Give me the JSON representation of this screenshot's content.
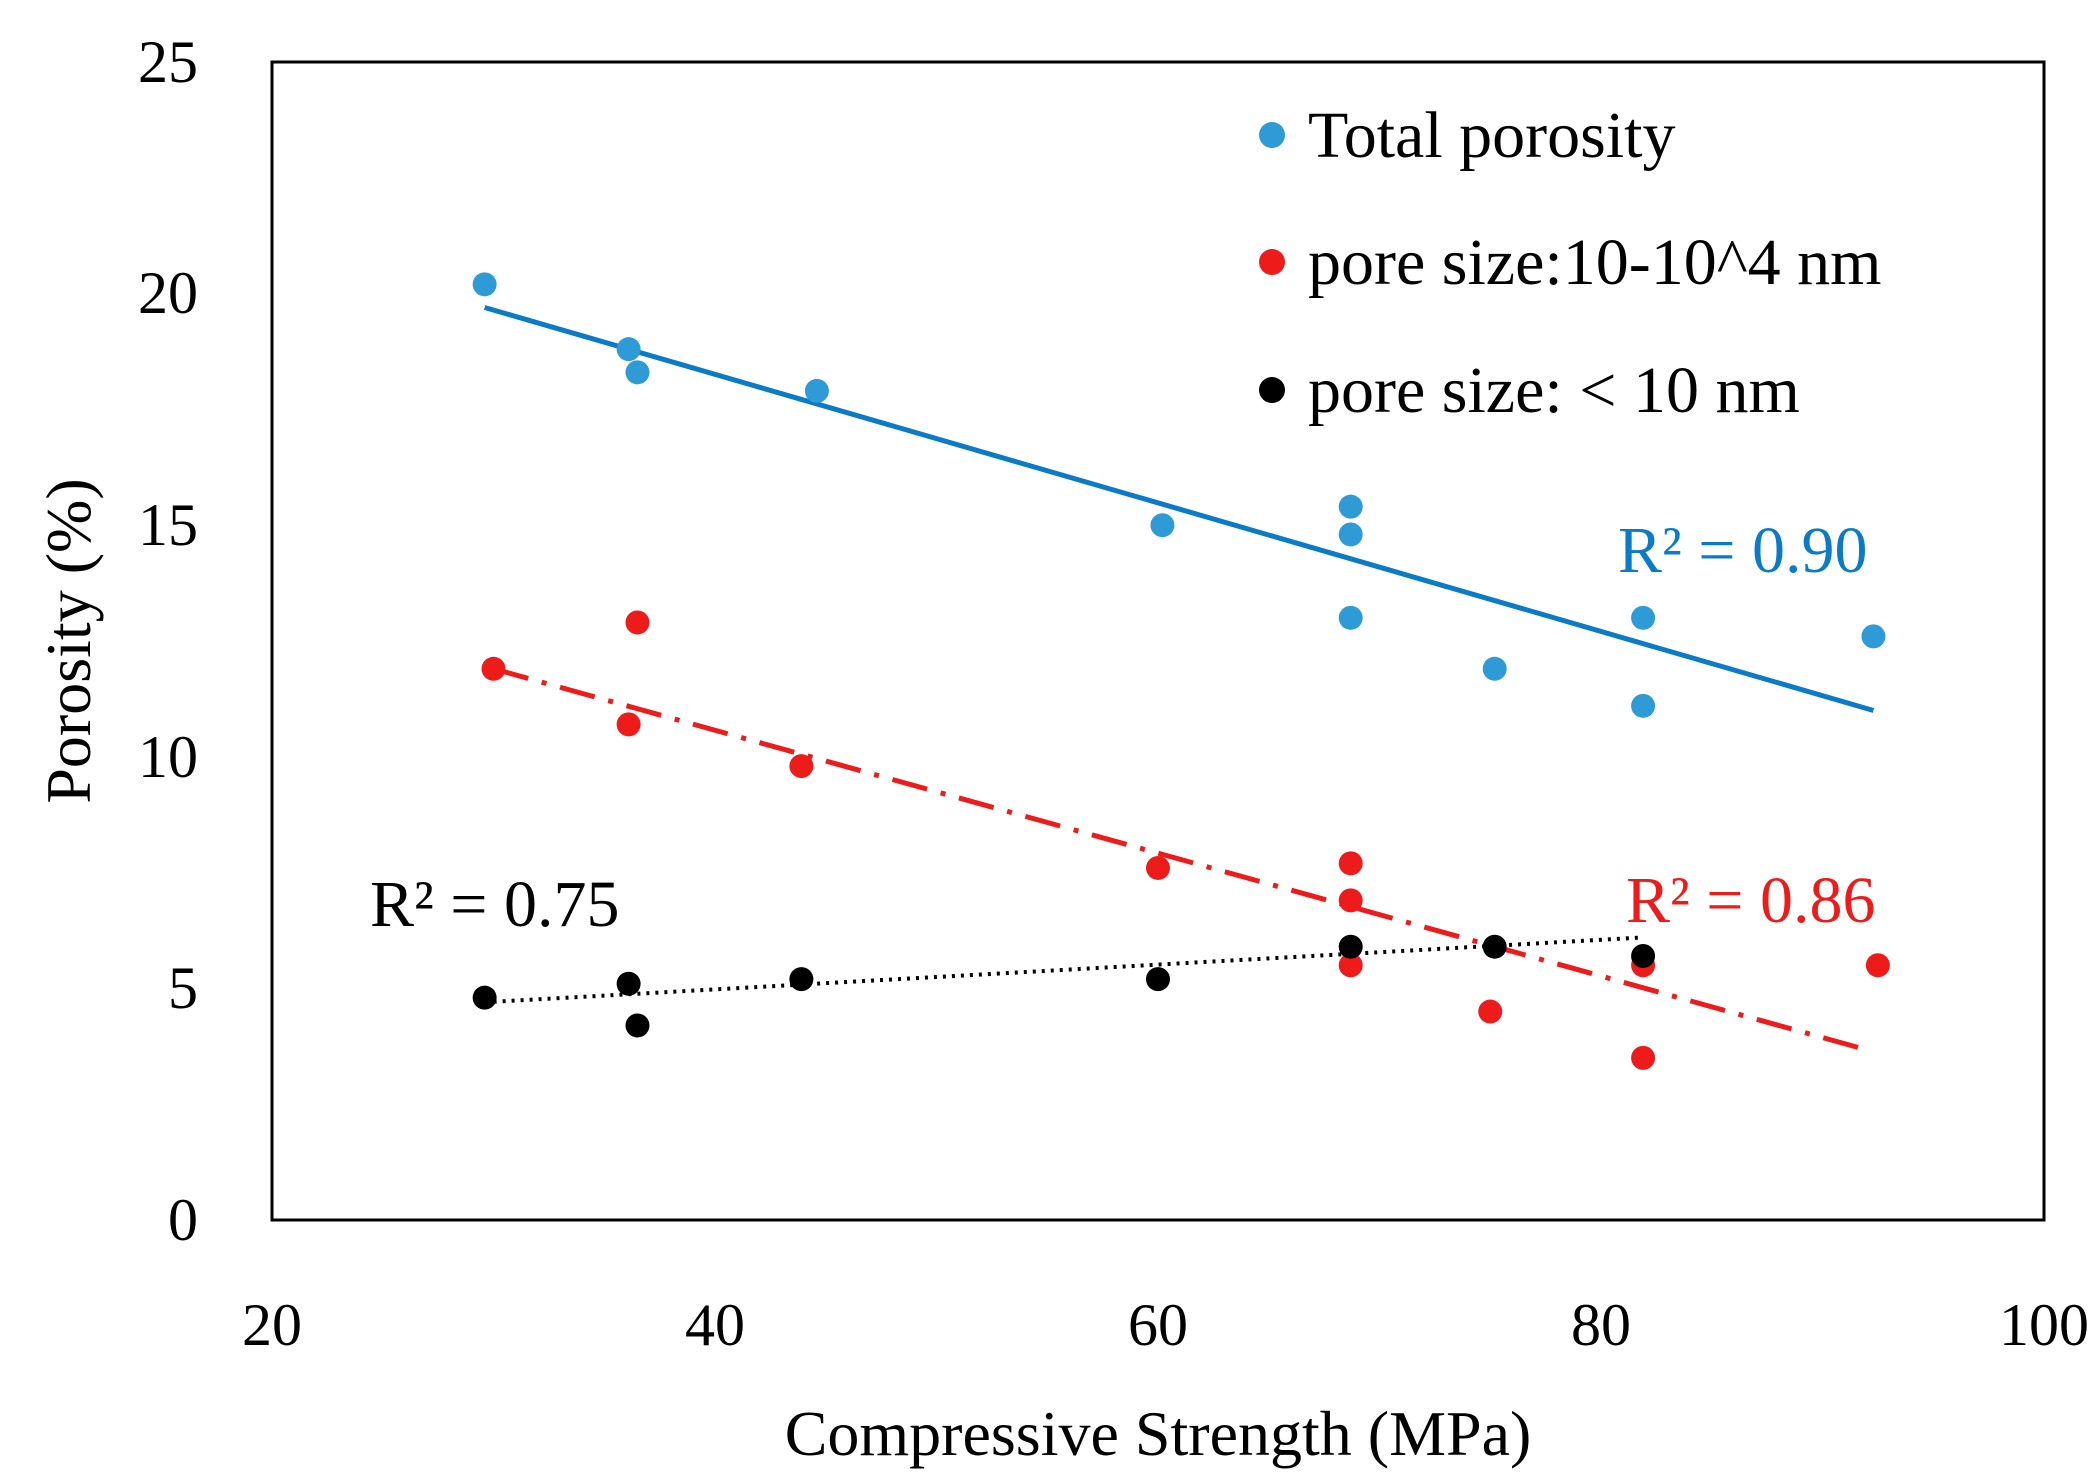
{
  "chart_data": {
    "type": "scatter",
    "title": "",
    "xlabel": "Compressive Strength (MPa)",
    "ylabel": "Porosity (%)",
    "xlim": [
      20,
      100
    ],
    "ylim": [
      0,
      25
    ],
    "xticks": [
      "20",
      "40",
      "60",
      "80",
      "100"
    ],
    "yticks": [
      "0",
      "5",
      "10",
      "15",
      "20",
      "25"
    ],
    "grid": false,
    "legend_position": "top-right",
    "series": [
      {
        "name": "Total porosity",
        "color": "#2e9bd6",
        "points": [
          {
            "x": 29.6,
            "y": 20.2
          },
          {
            "x": 36.1,
            "y": 18.8
          },
          {
            "x": 36.5,
            "y": 18.3
          },
          {
            "x": 44.6,
            "y": 17.9
          },
          {
            "x": 60.2,
            "y": 15.0
          },
          {
            "x": 68.7,
            "y": 15.4
          },
          {
            "x": 68.7,
            "y": 14.8
          },
          {
            "x": 68.7,
            "y": 13.0
          },
          {
            "x": 75.2,
            "y": 11.9
          },
          {
            "x": 81.9,
            "y": 13.0
          },
          {
            "x": 81.9,
            "y": 11.1
          },
          {
            "x": 92.3,
            "y": 12.6
          }
        ],
        "trendline": {
          "x1": 29.6,
          "y1": 19.7,
          "x2": 92.3,
          "y2": 11.0,
          "style": "solid",
          "color": "#0b7bc8",
          "r2": "R² = 0.90"
        }
      },
      {
        "name": "pore size:10-10^4 nm",
        "color": "#ee1b1b",
        "points": [
          {
            "x": 30.0,
            "y": 11.9
          },
          {
            "x": 36.1,
            "y": 10.7
          },
          {
            "x": 36.5,
            "y": 12.9
          },
          {
            "x": 43.9,
            "y": 9.8
          },
          {
            "x": 60.0,
            "y": 7.6
          },
          {
            "x": 68.7,
            "y": 7.7
          },
          {
            "x": 68.7,
            "y": 6.9
          },
          {
            "x": 68.7,
            "y": 5.5
          },
          {
            "x": 75.0,
            "y": 4.5
          },
          {
            "x": 81.9,
            "y": 5.5
          },
          {
            "x": 81.9,
            "y": 3.5
          },
          {
            "x": 92.5,
            "y": 5.5
          }
        ],
        "trendline": {
          "x1": 30.0,
          "y1": 11.9,
          "x2": 91.8,
          "y2": 3.7,
          "style": "dash-dot",
          "color": "#ee1b1b",
          "r2": "R² = 0.86"
        }
      },
      {
        "name": "pore size: < 10 nm",
        "color": "#000000",
        "points": [
          {
            "x": 29.6,
            "y": 4.8
          },
          {
            "x": 36.1,
            "y": 5.1
          },
          {
            "x": 36.5,
            "y": 4.2
          },
          {
            "x": 43.9,
            "y": 5.2
          },
          {
            "x": 60.0,
            "y": 5.2
          },
          {
            "x": 68.7,
            "y": 5.9
          },
          {
            "x": 75.2,
            "y": 5.9
          },
          {
            "x": 81.9,
            "y": 5.7
          }
        ],
        "trendline": {
          "x1": 29.6,
          "y1": 4.7,
          "x2": 81.9,
          "y2": 6.1,
          "style": "dotted",
          "color": "#000000",
          "r2": "R² = 0.75"
        }
      }
    ]
  }
}
